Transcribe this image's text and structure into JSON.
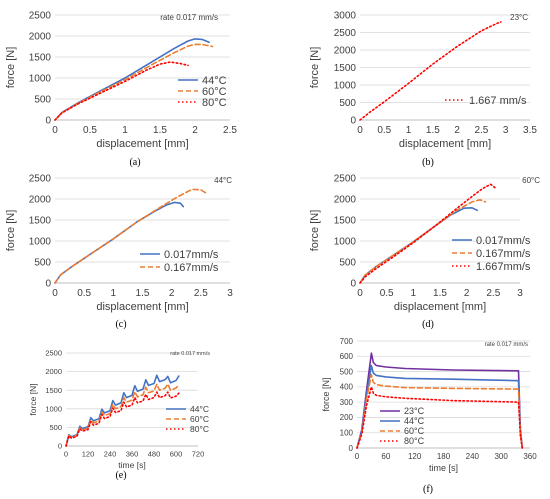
{
  "colors": {
    "blue": "#4472C4",
    "orange": "#ED7D31",
    "red": "#FF0000",
    "purple": "#7030A0",
    "grid": "#D9D9D9",
    "axis": "#BFBFBF",
    "text": "#404040"
  },
  "chart_data": [
    {
      "type": "line",
      "caption": "(a)",
      "annotation": "rate 0.017 mm/s",
      "xlabel": "displacement [mm]",
      "ylabel": "force [N]",
      "xlim": [
        0,
        2.5
      ],
      "ylim": [
        0,
        2500
      ],
      "xticks": [
        "0",
        "0.5",
        "1",
        "1.5",
        "2",
        "2.5"
      ],
      "yticks": [
        "0",
        "500",
        "1000",
        "1500",
        "2000",
        "2500"
      ],
      "grid": true,
      "legend": "right",
      "series": [
        {
          "name": "44°C",
          "color": "#4472C4",
          "dash": "solid",
          "x": [
            0,
            0.1,
            0.3,
            0.6,
            1.0,
            1.4,
            1.7,
            1.9,
            2.0,
            2.1,
            2.2
          ],
          "y": [
            0,
            180,
            380,
            650,
            1000,
            1400,
            1700,
            1880,
            1930,
            1920,
            1850
          ]
        },
        {
          "name": "60°C",
          "color": "#ED7D31",
          "dash": "dashed",
          "x": [
            0,
            0.1,
            0.3,
            0.6,
            1.0,
            1.4,
            1.7,
            1.9,
            2.0,
            2.1,
            2.25
          ],
          "y": [
            0,
            175,
            370,
            630,
            960,
            1330,
            1600,
            1760,
            1800,
            1800,
            1750
          ]
        },
        {
          "name": "80°C",
          "color": "#FF0000",
          "dash": "dotted",
          "x": [
            0,
            0.1,
            0.3,
            0.6,
            1.0,
            1.3,
            1.5,
            1.65,
            1.8,
            1.9
          ],
          "y": [
            0,
            170,
            360,
            600,
            920,
            1180,
            1330,
            1380,
            1340,
            1300
          ]
        }
      ]
    },
    {
      "type": "line",
      "caption": "(b)",
      "annotation": "23°C",
      "xlabel": "displacement [mm]",
      "ylabel": "force [N]",
      "xlim": [
        0,
        3.5
      ],
      "ylim": [
        0,
        3000
      ],
      "xticks": [
        "0",
        "0.5",
        "1",
        "1.5",
        "2",
        "2.5",
        "3",
        "3.5"
      ],
      "yticks": [
        "0",
        "500",
        "1000",
        "1500",
        "2000",
        "2500",
        "3000"
      ],
      "grid": true,
      "legend": "right",
      "series": [
        {
          "name": "1.667 mm/s",
          "color": "#FF0000",
          "dash": "dotted",
          "x": [
            0,
            0.2,
            0.5,
            1.0,
            1.5,
            2.0,
            2.5,
            2.8,
            2.9
          ],
          "y": [
            0,
            220,
            520,
            1050,
            1600,
            2100,
            2550,
            2750,
            2800
          ]
        }
      ]
    },
    {
      "type": "line",
      "caption": "(c)",
      "annotation": "44°C",
      "xlabel": "displacement [mm]",
      "ylabel": "force [N]",
      "xlim": [
        0,
        3
      ],
      "ylim": [
        0,
        2500
      ],
      "xticks": [
        "0",
        "0.5",
        "1",
        "1.5",
        "2",
        "2.5",
        "3"
      ],
      "yticks": [
        "0",
        "500",
        "1000",
        "1500",
        "2000",
        "2500"
      ],
      "grid": true,
      "legend": "right",
      "series": [
        {
          "name": "0.017mm/s",
          "color": "#4472C4",
          "dash": "solid",
          "x": [
            0,
            0.1,
            0.3,
            0.6,
            1.0,
            1.4,
            1.7,
            1.9,
            2.05,
            2.15,
            2.2
          ],
          "y": [
            0,
            200,
            400,
            680,
            1050,
            1450,
            1700,
            1850,
            1920,
            1900,
            1820
          ]
        },
        {
          "name": "0.167mm/s",
          "color": "#ED7D31",
          "dash": "dashed",
          "x": [
            0,
            0.1,
            0.3,
            0.6,
            1.0,
            1.4,
            1.8,
            2.1,
            2.35,
            2.5,
            2.6
          ],
          "y": [
            0,
            200,
            400,
            680,
            1050,
            1450,
            1800,
            2050,
            2230,
            2220,
            2130
          ]
        }
      ]
    },
    {
      "type": "line",
      "caption": "(d)",
      "annotation": "60°C",
      "xlabel": "displacement [mm]",
      "ylabel": "force [N]",
      "xlim": [
        0,
        3
      ],
      "ylim": [
        0,
        2500
      ],
      "xticks": [
        "0",
        "0.5",
        "1",
        "1.5",
        "2",
        "2.5",
        "3"
      ],
      "yticks": [
        "0",
        "500",
        "1000",
        "1500",
        "2000",
        "2500"
      ],
      "grid": true,
      "legend": "right",
      "series": [
        {
          "name": "0.017mm/s",
          "color": "#4472C4",
          "dash": "solid",
          "x": [
            0,
            0.1,
            0.3,
            0.6,
            1.0,
            1.4,
            1.7,
            1.95,
            2.1,
            2.2
          ],
          "y": [
            0,
            190,
            390,
            640,
            980,
            1350,
            1620,
            1780,
            1790,
            1730
          ]
        },
        {
          "name": "0.167mm/s",
          "color": "#ED7D31",
          "dash": "dashed",
          "x": [
            0,
            0.1,
            0.3,
            0.6,
            1.0,
            1.4,
            1.8,
            2.1,
            2.25,
            2.35
          ],
          "y": [
            0,
            190,
            390,
            640,
            980,
            1350,
            1720,
            1930,
            1980,
            1930
          ]
        },
        {
          "name": "1.667mm/s",
          "color": "#FF0000",
          "dash": "dotted",
          "x": [
            0,
            0.1,
            0.3,
            0.6,
            1.0,
            1.4,
            1.8,
            2.1,
            2.3,
            2.45,
            2.55
          ],
          "y": [
            0,
            150,
            340,
            600,
            960,
            1350,
            1760,
            2060,
            2250,
            2350,
            2250
          ]
        }
      ]
    },
    {
      "type": "line",
      "caption": "(e)",
      "annotation": "rate 0.017 mm/s",
      "xlabel": "time [s]",
      "ylabel": "force [N]",
      "xlim": [
        0,
        720
      ],
      "ylim": [
        0,
        2500
      ],
      "xticks": [
        "0",
        "120",
        "240",
        "360",
        "480",
        "600",
        "720"
      ],
      "yticks": [
        "0",
        "500",
        "1000",
        "1500",
        "2000",
        "2500"
      ],
      "grid": true,
      "legend": "right",
      "series": [
        {
          "name": "44°C",
          "color": "#4472C4",
          "dash": "solid",
          "x": [
            0,
            15,
            30,
            60,
            75,
            90,
            120,
            135,
            150,
            180,
            195,
            210,
            240,
            255,
            270,
            300,
            315,
            330,
            360,
            375,
            390,
            420,
            435,
            450,
            480,
            495,
            510,
            540,
            555,
            570,
            600,
            615
          ],
          "y": [
            0,
            300,
            250,
            300,
            530,
            470,
            520,
            760,
            680,
            730,
            990,
            890,
            950,
            1220,
            1100,
            1160,
            1430,
            1300,
            1360,
            1620,
            1470,
            1530,
            1780,
            1630,
            1680,
            1900,
            1730,
            1780,
            1870,
            1700,
            1760,
            1880
          ]
        },
        {
          "name": "60°C",
          "color": "#ED7D31",
          "dash": "dashed",
          "x": [
            0,
            15,
            30,
            60,
            75,
            90,
            120,
            135,
            150,
            180,
            195,
            210,
            240,
            255,
            270,
            300,
            315,
            330,
            360,
            375,
            390,
            420,
            435,
            450,
            480,
            495,
            510,
            540,
            555,
            570,
            600,
            615
          ],
          "y": [
            0,
            280,
            230,
            280,
            490,
            430,
            480,
            700,
            620,
            670,
            920,
            820,
            870,
            1120,
            1000,
            1060,
            1300,
            1180,
            1230,
            1460,
            1320,
            1380,
            1580,
            1430,
            1480,
            1660,
            1500,
            1550,
            1660,
            1500,
            1560,
            1640
          ]
        },
        {
          "name": "80°C",
          "color": "#FF0000",
          "dash": "dotted",
          "x": [
            0,
            15,
            30,
            60,
            75,
            90,
            120,
            135,
            150,
            180,
            195,
            210,
            240,
            255,
            270,
            300,
            315,
            330,
            360,
            375,
            390,
            420,
            435,
            450,
            480,
            495,
            510,
            540,
            555,
            570,
            600,
            615
          ],
          "y": [
            0,
            270,
            210,
            260,
            460,
            400,
            440,
            650,
            560,
            610,
            850,
            740,
            790,
            1020,
            900,
            950,
            1180,
            1050,
            1100,
            1300,
            1160,
            1210,
            1390,
            1250,
            1300,
            1450,
            1300,
            1350,
            1450,
            1290,
            1340,
            1420
          ]
        }
      ]
    },
    {
      "type": "line",
      "caption": "(f)",
      "annotation": "rate 0.017 mm/s",
      "xlabel": "time [s]",
      "ylabel": "force [N]",
      "xlim": [
        0,
        360
      ],
      "ylim": [
        0,
        700
      ],
      "xticks": [
        "0",
        "60",
        "120",
        "180",
        "240",
        "300",
        "360"
      ],
      "yticks": [
        "0",
        "100",
        "200",
        "300",
        "400",
        "500",
        "600",
        "700"
      ],
      "grid": true,
      "legend": "left",
      "series": [
        {
          "name": "23°C",
          "color": "#7030A0",
          "dash": "solid",
          "x": [
            0,
            10,
            20,
            30,
            34,
            40,
            60,
            100,
            200,
            336,
            340,
            344
          ],
          "y": [
            0,
            120,
            380,
            620,
            560,
            540,
            530,
            520,
            510,
            505,
            120,
            0
          ]
        },
        {
          "name": "44°C",
          "color": "#4472C4",
          "dash": "solid",
          "x": [
            0,
            10,
            20,
            30,
            34,
            40,
            60,
            100,
            200,
            336,
            340,
            344
          ],
          "y": [
            0,
            110,
            350,
            540,
            490,
            475,
            465,
            455,
            450,
            440,
            100,
            0
          ]
        },
        {
          "name": "60°C",
          "color": "#ED7D31",
          "dash": "dashed",
          "x": [
            0,
            10,
            20,
            30,
            34,
            40,
            60,
            100,
            200,
            336,
            340,
            344
          ],
          "y": [
            0,
            100,
            320,
            480,
            430,
            415,
            405,
            395,
            390,
            385,
            90,
            0
          ]
        },
        {
          "name": "80°C",
          "color": "#FF0000",
          "dash": "dotted",
          "x": [
            0,
            10,
            20,
            30,
            34,
            40,
            60,
            100,
            200,
            336,
            340,
            344
          ],
          "y": [
            0,
            90,
            280,
            400,
            360,
            345,
            335,
            325,
            310,
            300,
            80,
            0
          ]
        }
      ]
    }
  ]
}
